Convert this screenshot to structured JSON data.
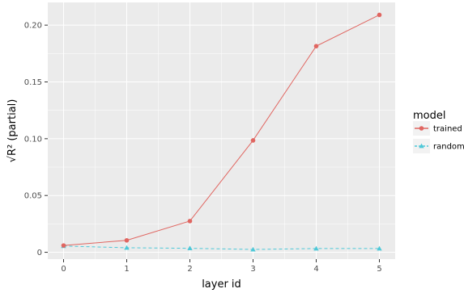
{
  "chart_data": {
    "type": "line",
    "xlabel": "layer id",
    "ylabel": "√R² (partial)",
    "x": [
      0,
      1,
      2,
      3,
      4,
      5
    ],
    "xticks": [
      "0",
      "1",
      "2",
      "3",
      "4",
      "5"
    ],
    "xlim": [
      -0.25,
      5.25
    ],
    "yticks": [
      0,
      0.05,
      0.1,
      0.15,
      0.2
    ],
    "ytick_labels": [
      "0",
      "0.05",
      "0.10",
      "0.15",
      "0.20"
    ],
    "ylim": [
      -0.006,
      0.22
    ],
    "grid": true,
    "legend": {
      "title": "model",
      "placement": "right"
    },
    "series": [
      {
        "name": "trained",
        "values": [
          0.006,
          0.0105,
          0.0275,
          0.0985,
          0.1815,
          0.209
        ],
        "color": "#e06661",
        "line_style": "solid",
        "marker": "circle"
      },
      {
        "name": "random",
        "values": [
          0.0055,
          0.004,
          0.0035,
          0.0025,
          0.0033,
          0.0033
        ],
        "color": "#4dc8d8",
        "line_style": "dashed",
        "marker": "triangle"
      }
    ]
  },
  "colors": {
    "panel_background": "#ebebeb",
    "gridline": "#ffffff"
  }
}
